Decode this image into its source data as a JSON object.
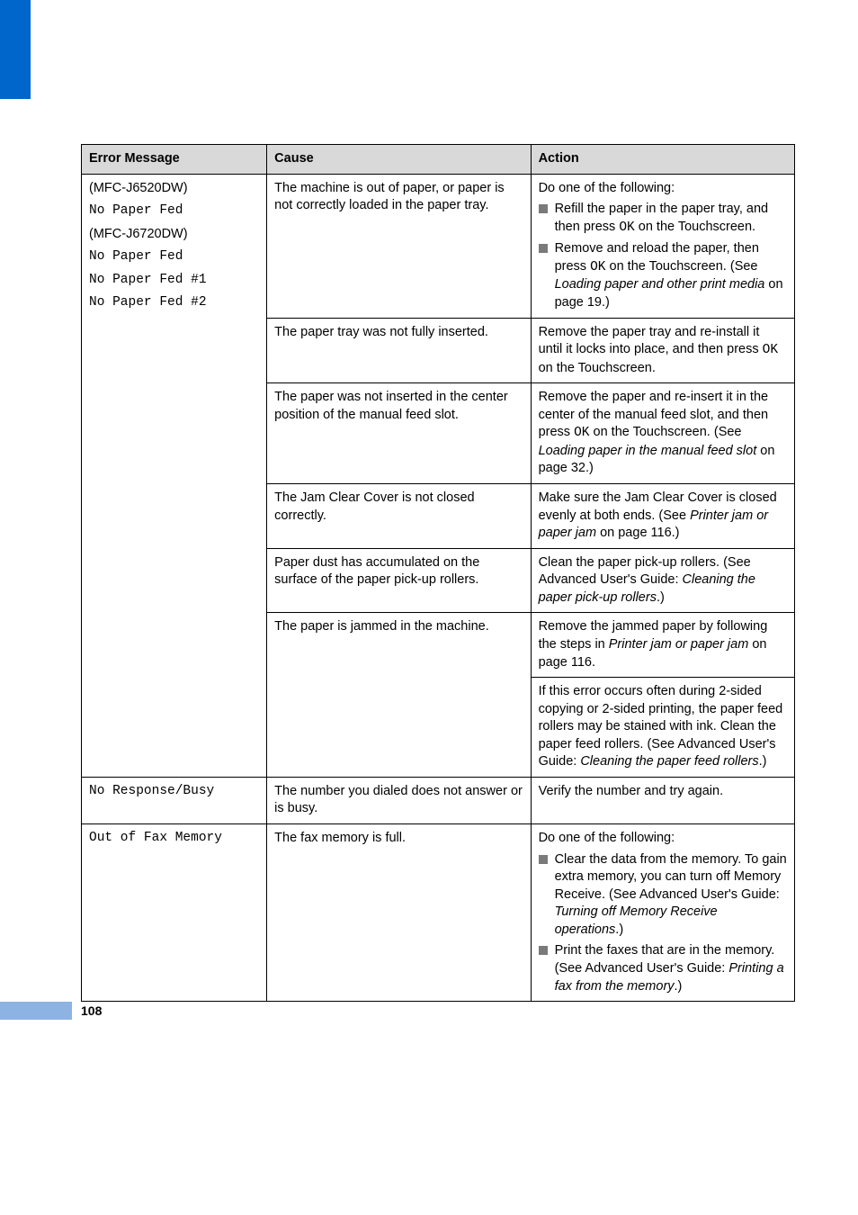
{
  "page_number": "108",
  "sidebar_color": "#0066cc",
  "header_bg": "#d9d9d9",
  "bullet_color": "#7a7a7a",
  "pnum_bar_color": "#8db3e2",
  "table": {
    "headers": [
      "Error Message",
      "Cause",
      "Action"
    ],
    "col_widths_pct": [
      26,
      37,
      37
    ]
  },
  "row1": {
    "err": {
      "l1": "(MFC-J6520DW)",
      "l2": "No Paper Fed",
      "l3": "(MFC-J6720DW)",
      "l4": "No Paper Fed",
      "l5": "No Paper Fed #1",
      "l6": "No Paper Fed #2"
    },
    "cause1": "The machine is out of paper, or paper is not correctly loaded in the paper tray.",
    "action1": {
      "lead": "Do one of the following:",
      "b1a": "Refill the paper in the paper tray, and then press ",
      "b1ok": "OK",
      "b1b": " on the Touchscreen.",
      "b2a": "Remove and reload the paper, then press ",
      "b2ok": "OK",
      "b2b": " on the Touchscreen. (See ",
      "b2i": "Loading paper and other print media",
      "b2c": " on page 19.)"
    },
    "cause2": "The paper tray was not fully inserted.",
    "action2": {
      "a": "Remove the paper tray and re-install it until it locks into place, and then press ",
      "ok": "OK",
      "b": " on the Touchscreen."
    },
    "cause3": "The paper was not inserted in the center position of the manual feed slot.",
    "action3": {
      "a": "Remove the paper and re-insert it in the center of the manual feed slot, and then press ",
      "ok": "OK",
      "b": " on the Touchscreen. (See ",
      "i": "Loading paper in the manual feed slot",
      "c": " on page 32.)"
    },
    "cause4": "The Jam Clear Cover is not closed correctly.",
    "action4": {
      "a": "Make sure the Jam Clear Cover is closed evenly at both ends. (See ",
      "i": "Printer jam or paper jam",
      "b": " on page 116.)"
    },
    "cause5": "Paper dust has accumulated on the surface of the paper pick-up rollers.",
    "action5": {
      "a": "Clean the paper pick-up rollers. (See Advanced User's Guide: ",
      "i": "Cleaning the paper pick-up rollers",
      "b": ".)"
    },
    "cause6": "The paper is jammed in the machine.",
    "action6a": {
      "a": "Remove the jammed paper by following the steps in ",
      "i": "Printer jam or paper jam",
      "b": " on page 116."
    },
    "action6b": {
      "a": "If this error occurs often during 2-sided copying or 2-sided printing, the paper feed rollers may be stained with ink. Clean the paper feed rollers. (See Advanced User's Guide: ",
      "i": "Cleaning the paper feed rollers",
      "b": ".)"
    }
  },
  "row2": {
    "err": "No Response/Busy",
    "cause": "The number you dialed does not answer or is busy.",
    "action": "Verify the number and try again."
  },
  "row3": {
    "err": "Out of Fax Memory",
    "cause": "The fax memory is full.",
    "action": {
      "lead": "Do one of the following:",
      "b1a": "Clear the data from the memory. To gain extra memory, you can turn off Memory Receive. (See Advanced User's Guide: ",
      "b1i": "Turning off Memory Receive operations",
      "b1b": ".)",
      "b2a": "Print the faxes that are in the memory. (See Advanced User's Guide: ",
      "b2i": "Printing a fax from the memory",
      "b2b": ".)"
    }
  }
}
